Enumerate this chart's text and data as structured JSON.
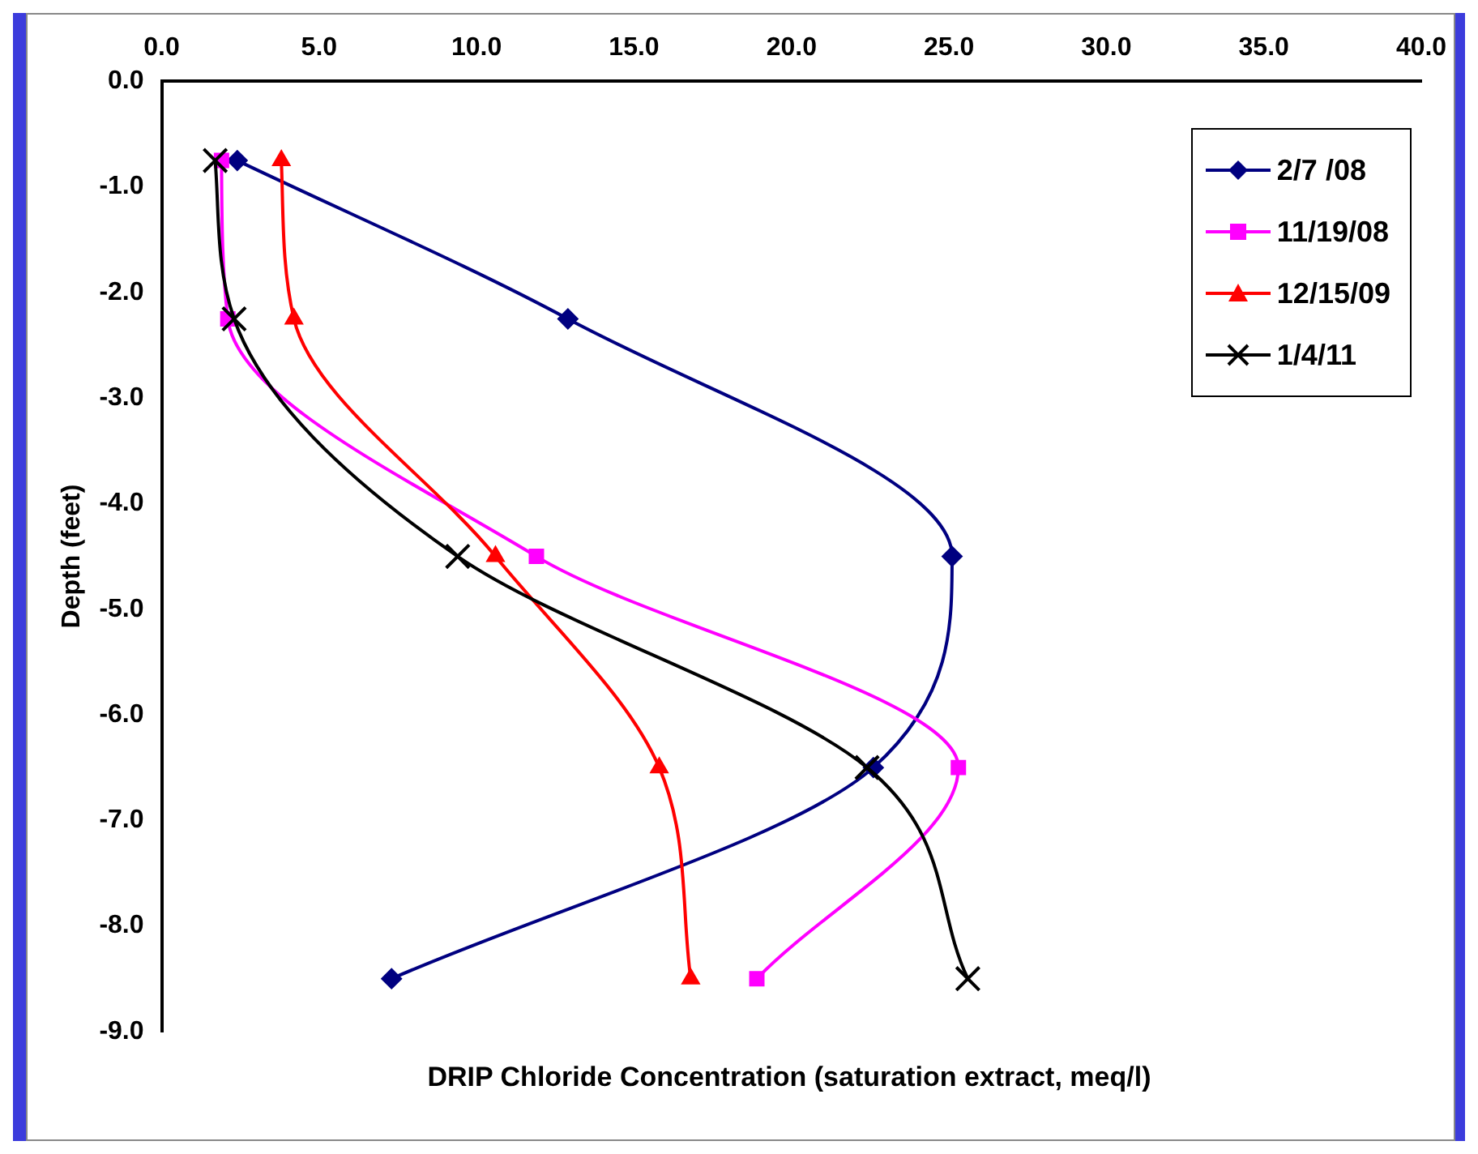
{
  "chart_data": {
    "type": "line",
    "xlabel": "DRIP Chloride Concentration (saturation extract, meq/l)",
    "ylabel": "Depth (feet)",
    "xlim": [
      0,
      40
    ],
    "xticks": [
      {
        "value": 0,
        "label": "0.0"
      },
      {
        "value": 5,
        "label": "5.0"
      },
      {
        "value": 10,
        "label": "10.0"
      },
      {
        "value": 15,
        "label": "15.0"
      },
      {
        "value": 20,
        "label": "20.0"
      },
      {
        "value": 25,
        "label": "25.0"
      },
      {
        "value": 30,
        "label": "30.0"
      },
      {
        "value": 35,
        "label": "35.0"
      },
      {
        "value": 40,
        "label": "40.0"
      }
    ],
    "ylim": [
      -9,
      0
    ],
    "yticks": [
      {
        "value": -9,
        "label": "-9.0"
      },
      {
        "value": -8,
        "label": "-8.0"
      },
      {
        "value": -7,
        "label": "-7.0"
      },
      {
        "value": -6,
        "label": "-6.0"
      },
      {
        "value": -5,
        "label": "-5.0"
      },
      {
        "value": -4,
        "label": "-4.0"
      },
      {
        "value": -3,
        "label": "-3.0"
      },
      {
        "value": -2,
        "label": "-2.0"
      },
      {
        "value": -1,
        "label": "-1.0"
      },
      {
        "value": 0,
        "label": "0.0"
      }
    ],
    "grid": false,
    "legend": "top right",
    "series": [
      {
        "name": "2/7 /08",
        "color": "#000080",
        "marker": "diamond",
        "x": [
          2.4,
          12.9,
          25.1,
          22.6,
          7.3
        ],
        "values": [
          -0.75,
          -2.25,
          -4.5,
          -6.5,
          -8.5
        ]
      },
      {
        "name": "11/19/08",
        "color": "#ff00ff",
        "marker": "square",
        "x": [
          1.9,
          2.1,
          11.9,
          25.3,
          18.9
        ],
        "values": [
          -0.75,
          -2.25,
          -4.5,
          -6.5,
          -8.5
        ]
      },
      {
        "name": "12/15/09",
        "color": "#ff0000",
        "marker": "triangle",
        "x": [
          3.8,
          4.2,
          10.6,
          15.8,
          16.8
        ],
        "values": [
          -0.75,
          -2.25,
          -4.5,
          -6.5,
          -8.5
        ]
      },
      {
        "name": "1/4/11",
        "color": "#000000",
        "marker": "cross",
        "x": [
          1.7,
          2.3,
          9.4,
          22.4,
          25.6
        ],
        "values": [
          -0.75,
          -2.25,
          -4.5,
          -6.5,
          -8.5
        ]
      }
    ]
  }
}
